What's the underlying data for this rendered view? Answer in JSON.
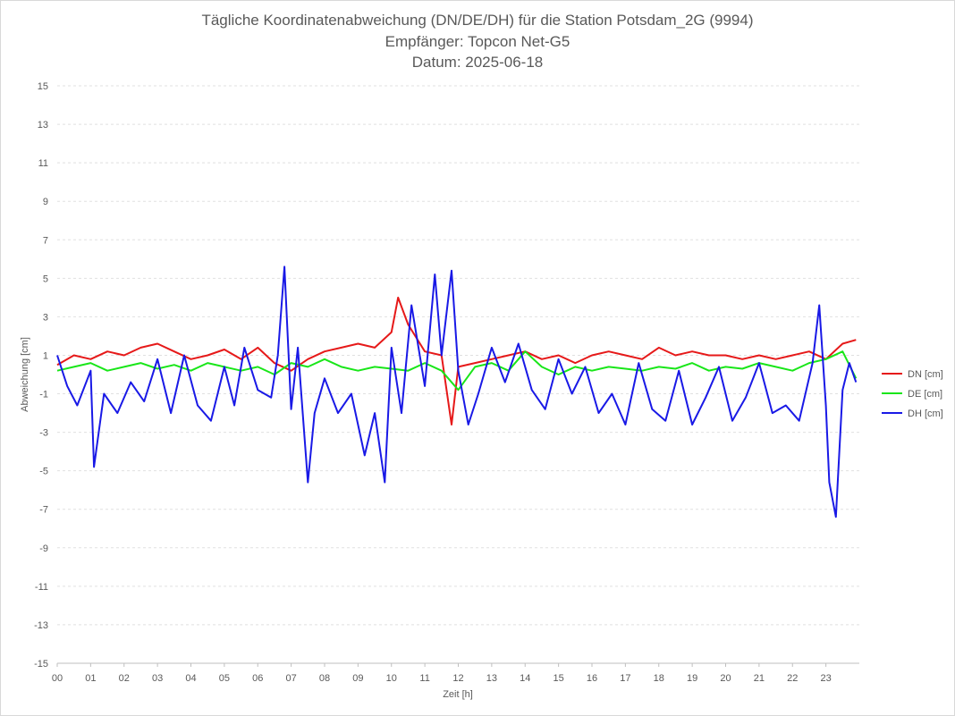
{
  "chart_data": {
    "type": "line",
    "title": [
      "Tägliche Koordinatenabweichung (DN/DE/DH) für die Station Potsdam_2G (9994)",
      "Empfänger: Topcon Net-G5",
      "Datum: 2025-06-18"
    ],
    "xlabel": "Zeit [h]",
    "ylabel": "Abweichung [cm]",
    "xlim": [
      0,
      24
    ],
    "ylim": [
      -15,
      15
    ],
    "yticks": [
      15,
      13,
      11,
      9,
      7,
      5,
      3,
      1,
      -1,
      -3,
      -5,
      -7,
      -9,
      -11,
      -13,
      -15
    ],
    "xticks": [
      "00",
      "01",
      "02",
      "03",
      "04",
      "05",
      "06",
      "07",
      "08",
      "09",
      "10",
      "11",
      "12",
      "13",
      "14",
      "15",
      "16",
      "17",
      "18",
      "19",
      "20",
      "21",
      "22",
      "23"
    ],
    "grid": true,
    "legend_position": "right",
    "series": [
      {
        "name": "DN [cm]",
        "color": "#e61919",
        "x": [
          0,
          0.5,
          1,
          1.5,
          2,
          2.5,
          3,
          3.5,
          4,
          4.5,
          5,
          5.5,
          6,
          6.5,
          7,
          7.5,
          8,
          8.5,
          9,
          9.5,
          10,
          10.2,
          10.5,
          11,
          11.5,
          11.8,
          12,
          12.5,
          13,
          13.5,
          14,
          14.5,
          15,
          15.5,
          16,
          16.5,
          17,
          17.5,
          18,
          18.5,
          19,
          19.5,
          20,
          20.5,
          21,
          21.5,
          22,
          22.5,
          23,
          23.5,
          23.9
        ],
        "values": [
          0.5,
          1.0,
          0.8,
          1.2,
          1.0,
          1.4,
          1.6,
          1.2,
          0.8,
          1.0,
          1.3,
          0.8,
          1.4,
          0.6,
          0.2,
          0.8,
          1.2,
          1.4,
          1.6,
          1.4,
          2.2,
          4.0,
          2.6,
          1.2,
          1.0,
          -2.6,
          0.4,
          0.6,
          0.8,
          1.0,
          1.2,
          0.8,
          1.0,
          0.6,
          1.0,
          1.2,
          1.0,
          0.8,
          1.4,
          1.0,
          1.2,
          1.0,
          1.0,
          0.8,
          1.0,
          0.8,
          1.0,
          1.2,
          0.8,
          1.6,
          1.8
        ]
      },
      {
        "name": "DE [cm]",
        "color": "#19e619",
        "x": [
          0,
          0.5,
          1,
          1.5,
          2,
          2.5,
          3,
          3.5,
          4,
          4.5,
          5,
          5.5,
          6,
          6.5,
          7,
          7.5,
          8,
          8.5,
          9,
          9.5,
          10,
          10.5,
          11,
          11.5,
          12,
          12.5,
          13,
          13.5,
          14,
          14.5,
          15,
          15.5,
          16,
          16.5,
          17,
          17.5,
          18,
          18.5,
          19,
          19.5,
          20,
          20.5,
          21,
          21.5,
          22,
          22.5,
          23,
          23.5,
          23.9
        ],
        "values": [
          0.2,
          0.4,
          0.6,
          0.2,
          0.4,
          0.6,
          0.3,
          0.5,
          0.2,
          0.6,
          0.4,
          0.2,
          0.4,
          0.0,
          0.6,
          0.4,
          0.8,
          0.4,
          0.2,
          0.4,
          0.3,
          0.2,
          0.6,
          0.2,
          -0.8,
          0.4,
          0.6,
          0.2,
          1.2,
          0.4,
          0.0,
          0.4,
          0.2,
          0.4,
          0.3,
          0.2,
          0.4,
          0.3,
          0.6,
          0.2,
          0.4,
          0.3,
          0.6,
          0.4,
          0.2,
          0.6,
          0.8,
          1.2,
          -0.2
        ]
      },
      {
        "name": "DH [cm]",
        "color": "#1919e6",
        "x": [
          0,
          0.3,
          0.6,
          1,
          1.1,
          1.4,
          1.8,
          2.2,
          2.6,
          3,
          3.4,
          3.8,
          4.2,
          4.6,
          5,
          5.3,
          5.6,
          6,
          6.4,
          6.6,
          6.8,
          7,
          7.2,
          7.5,
          7.7,
          8,
          8.4,
          8.8,
          9.2,
          9.5,
          9.8,
          10,
          10.3,
          10.6,
          11,
          11.3,
          11.5,
          11.8,
          12,
          12.3,
          12.6,
          13,
          13.4,
          13.8,
          14.2,
          14.6,
          15,
          15.4,
          15.8,
          16.2,
          16.6,
          17,
          17.4,
          17.8,
          18.2,
          18.6,
          19,
          19.4,
          19.8,
          20.2,
          20.6,
          21,
          21.4,
          21.8,
          22.2,
          22.6,
          22.8,
          23,
          23.1,
          23.3,
          23.5,
          23.7,
          23.9
        ],
        "values": [
          1.0,
          -0.6,
          -1.6,
          0.2,
          -4.8,
          -1.0,
          -2.0,
          -0.4,
          -1.4,
          0.8,
          -2.0,
          1.0,
          -1.6,
          -2.4,
          0.4,
          -1.6,
          1.4,
          -0.8,
          -1.2,
          1.0,
          5.6,
          -1.8,
          1.4,
          -5.6,
          -2.0,
          -0.2,
          -2.0,
          -1.0,
          -4.2,
          -2.0,
          -5.6,
          1.4,
          -2.0,
          3.6,
          -0.6,
          5.2,
          1.0,
          5.4,
          0.2,
          -2.6,
          -1.0,
          1.4,
          -0.4,
          1.6,
          -0.8,
          -1.8,
          0.8,
          -1.0,
          0.4,
          -2.0,
          -1.0,
          -2.6,
          0.6,
          -1.8,
          -2.4,
          0.2,
          -2.6,
          -1.2,
          0.4,
          -2.4,
          -1.2,
          0.6,
          -2.0,
          -1.6,
          -2.4,
          0.6,
          3.6,
          -1.6,
          -5.6,
          -7.4,
          -0.8,
          0.6,
          -0.4
        ]
      }
    ]
  }
}
